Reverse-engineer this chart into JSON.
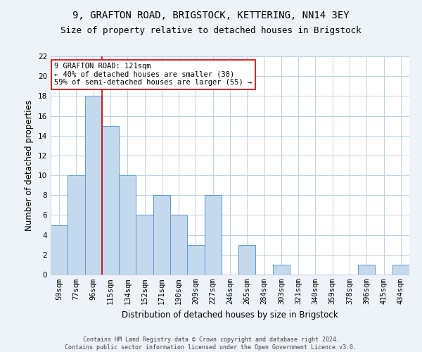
{
  "title_line1": "9, GRAFTON ROAD, BRIGSTOCK, KETTERING, NN14 3EY",
  "title_line2": "Size of property relative to detached houses in Brigstock",
  "xlabel": "Distribution of detached houses by size in Brigstock",
  "ylabel": "Number of detached properties",
  "bar_labels": [
    "59sqm",
    "77sqm",
    "96sqm",
    "115sqm",
    "134sqm",
    "152sqm",
    "171sqm",
    "190sqm",
    "209sqm",
    "227sqm",
    "246sqm",
    "265sqm",
    "284sqm",
    "303sqm",
    "321sqm",
    "340sqm",
    "359sqm",
    "378sqm",
    "396sqm",
    "415sqm",
    "434sqm"
  ],
  "bar_values": [
    5,
    10,
    18,
    15,
    10,
    6,
    8,
    6,
    3,
    8,
    0,
    3,
    0,
    1,
    0,
    0,
    0,
    0,
    1,
    0,
    1
  ],
  "bar_color": "#c5d9ed",
  "bar_edge_color": "#5b9bd5",
  "annotation_line1": "9 GRAFTON ROAD: 121sqm",
  "annotation_line2": "← 40% of detached houses are smaller (38)",
  "annotation_line3": "59% of semi-detached houses are larger (55) →",
  "reference_line_color": "#cc0000",
  "reference_line_x": 2.5,
  "ylim": [
    0,
    22
  ],
  "yticks": [
    0,
    2,
    4,
    6,
    8,
    10,
    12,
    14,
    16,
    18,
    20,
    22
  ],
  "footer_text": "Contains HM Land Registry data © Crown copyright and database right 2024.\nContains public sector information licensed under the Open Government Licence v3.0.",
  "bg_color": "#edf3f9",
  "plot_bg_color": "#ffffff",
  "grid_color": "#c0d0e0",
  "title_fontsize": 10,
  "subtitle_fontsize": 9,
  "tick_fontsize": 7.5,
  "label_fontsize": 8.5,
  "footer_fontsize": 6
}
